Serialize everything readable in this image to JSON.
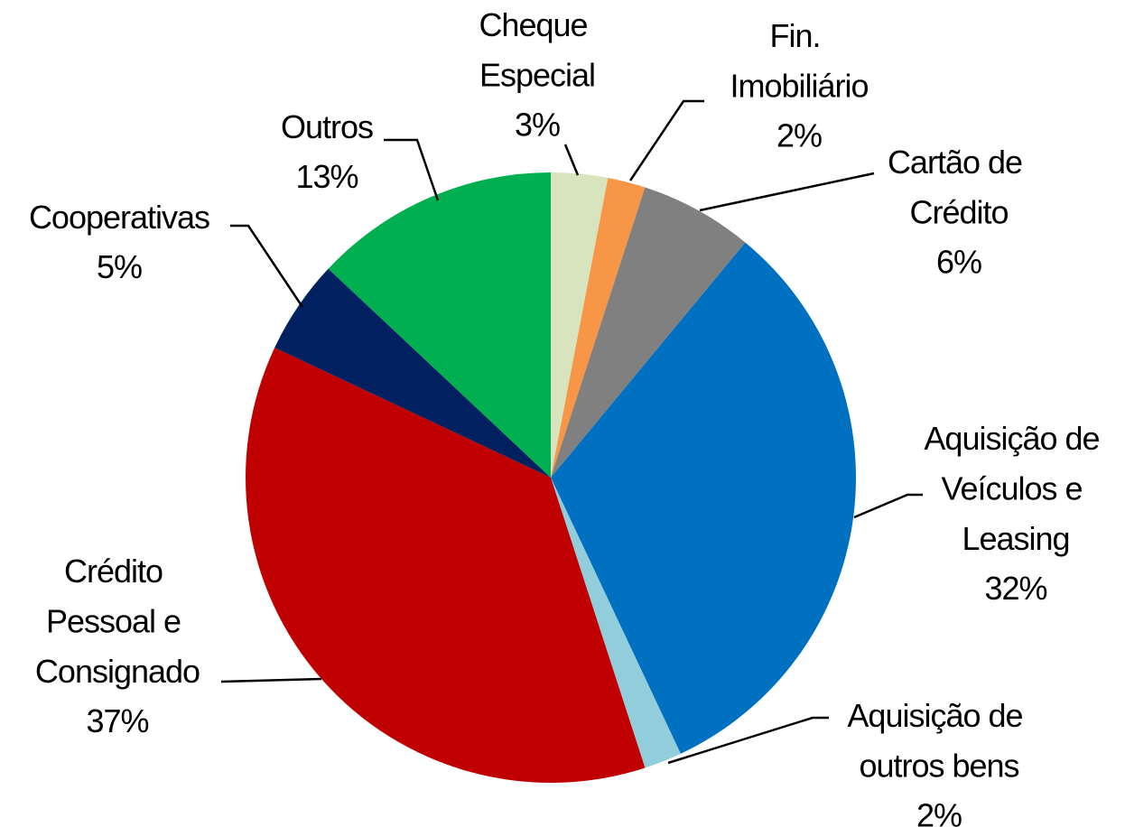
{
  "chart_data": {
    "type": "pie",
    "categories": [
      "Cheque Especial",
      "Fin. Imobiliário",
      "Cartão de Crédito",
      "Aquisição de Veículos e Leasing",
      "Aquisição de outros bens",
      "Crédito Pessoal e Consignado",
      "Cooperativas",
      "Outros"
    ],
    "values": [
      3,
      2,
      6,
      32,
      2,
      37,
      5,
      13
    ],
    "value_labels": [
      "3%",
      "2%",
      "6%",
      "32%",
      "2%",
      "37%",
      "5%",
      "13%"
    ],
    "colors": [
      "#d7e4bd",
      "#f79646",
      "#808080",
      "#0070c0",
      "#92cddc",
      "#c00000",
      "#002060",
      "#00b050"
    ]
  }
}
